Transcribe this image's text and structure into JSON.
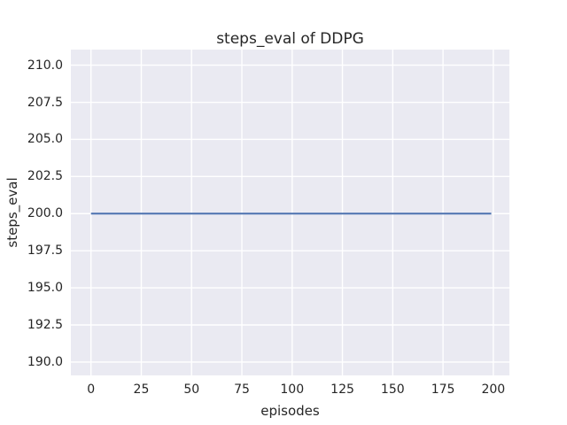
{
  "chart_data": {
    "type": "line",
    "title": "steps_eval of DDPG",
    "xlabel": "episodes",
    "ylabel": "steps_eval",
    "series": [
      {
        "name": "steps_eval",
        "color": "#4C72B0",
        "x": [
          0,
          199
        ],
        "y": [
          200,
          200
        ]
      }
    ],
    "xticks": {
      "values": [
        0,
        25,
        50,
        75,
        100,
        125,
        150,
        175,
        200
      ],
      "labels": [
        "0",
        "25",
        "50",
        "75",
        "100",
        "125",
        "150",
        "175",
        "200"
      ]
    },
    "yticks": {
      "values": [
        190.0,
        192.5,
        195.0,
        197.5,
        200.0,
        202.5,
        205.0,
        207.5,
        210.0
      ],
      "labels": [
        "190.0",
        "192.5",
        "195.0",
        "197.5",
        "200.0",
        "202.5",
        "205.0",
        "207.5",
        "210.0"
      ]
    },
    "xlim": [
      -10,
      208
    ],
    "ylim": [
      189.1,
      211.05
    ],
    "grid": true,
    "legend_position": "none",
    "colors": {
      "figure_background": "#FFFFFF",
      "plot_background": "#EAEAF2",
      "grid": "#FFFFFF",
      "text": "#262626"
    }
  }
}
